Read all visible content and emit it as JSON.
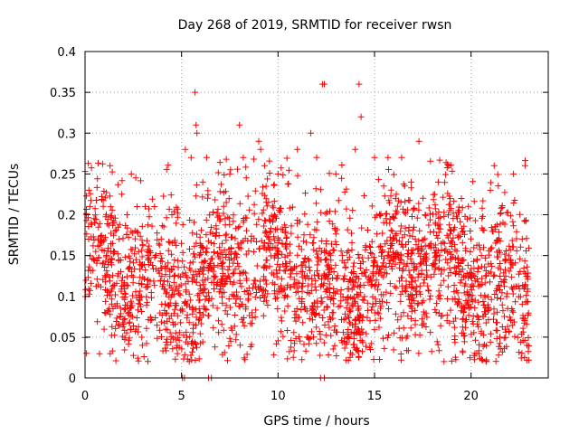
{
  "chart_data": {
    "type": "scatter",
    "title": "Day 268 of 2019, SRMTID for receiver rwsn",
    "xlabel": "GPS time / hours",
    "ylabel": "SRMTID / TECUs",
    "xlim": [
      0,
      24
    ],
    "ylim": [
      0,
      0.4
    ],
    "x_ticks": [
      0,
      5,
      10,
      15,
      20
    ],
    "x_tick_labels": [
      "0",
      "5",
      "10",
      "15",
      "20"
    ],
    "y_ticks": [
      0,
      0.05,
      0.1,
      0.15,
      0.2,
      0.25,
      0.3,
      0.35,
      0.4
    ],
    "y_tick_labels": [
      "0",
      "0.05",
      "0.1",
      "0.15",
      "0.2",
      "0.25",
      "0.3",
      "0.35",
      "0.4"
    ],
    "grid": true,
    "marker": "+",
    "series_color": "#ff0000",
    "x_range_of_points": [
      0,
      23
    ],
    "typical_y_range": [
      0.05,
      0.25
    ],
    "point_density_note": "dense cloud of plus markers",
    "series": [
      {
        "name": "SRMTID",
        "points": [
          [
            0.2,
            0.23
          ],
          [
            0.5,
            0.19
          ],
          [
            1.3,
            0.26
          ],
          [
            1.5,
            0.19
          ],
          [
            2.4,
            0.25
          ],
          [
            2.7,
            0.21
          ],
          [
            3.6,
            0.21
          ],
          [
            4.5,
            0.2
          ],
          [
            5.2,
            0.28
          ],
          [
            5.5,
            0.27
          ],
          [
            5.7,
            0.35
          ],
          [
            5.75,
            0.31
          ],
          [
            5.8,
            0.3
          ],
          [
            6.1,
            0.24
          ],
          [
            6.3,
            0.27
          ],
          [
            7.5,
            0.25
          ],
          [
            8.0,
            0.31
          ],
          [
            8.2,
            0.27
          ],
          [
            9.0,
            0.29
          ],
          [
            9.1,
            0.28
          ],
          [
            9.3,
            0.26
          ],
          [
            10.0,
            0.25
          ],
          [
            11.0,
            0.28
          ],
          [
            11.7,
            0.3
          ],
          [
            12.0,
            0.27
          ],
          [
            12.3,
            0.36
          ],
          [
            12.4,
            0.36
          ],
          [
            13.0,
            0.25
          ],
          [
            14.0,
            0.28
          ],
          [
            14.2,
            0.36
          ],
          [
            14.3,
            0.32
          ],
          [
            15.0,
            0.27
          ],
          [
            15.7,
            0.27
          ],
          [
            16.4,
            0.27
          ],
          [
            16.9,
            0.24
          ],
          [
            17.3,
            0.29
          ],
          [
            18.3,
            0.24
          ],
          [
            18.6,
            0.02
          ],
          [
            19.5,
            0.22
          ],
          [
            20.2,
            0.03
          ],
          [
            20.8,
            0.02
          ],
          [
            21.0,
            0.23
          ],
          [
            21.2,
            0.26
          ],
          [
            22.2,
            0.25
          ],
          [
            22.8,
            0.26
          ],
          [
            22.9,
            0.04
          ],
          [
            5.05,
            0.0
          ],
          [
            5.15,
            0.0
          ],
          [
            6.4,
            0.0
          ],
          [
            6.55,
            0.0
          ],
          [
            12.2,
            0.0
          ],
          [
            12.4,
            0.0
          ]
        ]
      }
    ]
  }
}
